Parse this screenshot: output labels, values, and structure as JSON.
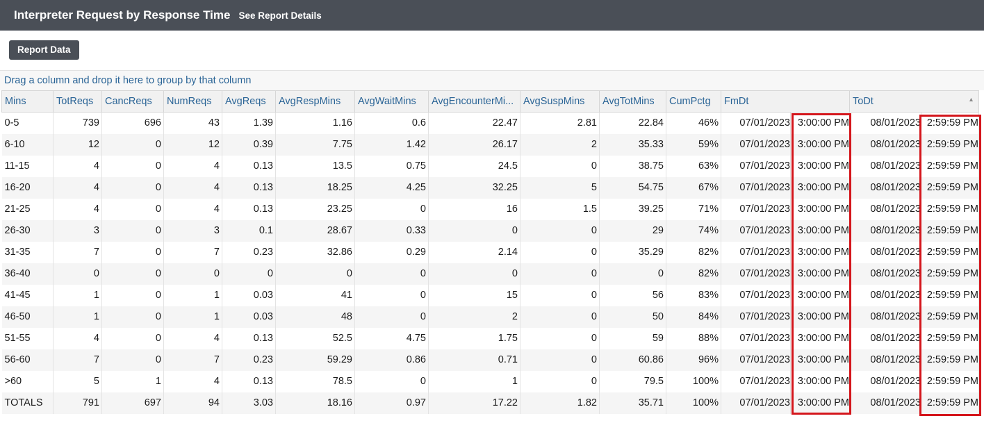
{
  "header": {
    "title": "Interpreter Request by Response Time",
    "details_link": "See Report Details"
  },
  "toolbar": {
    "report_data_label": "Report Data"
  },
  "grid": {
    "group_hint": "Drag a column and drop it here to group by that column",
    "columns": [
      "Mins",
      "TotReqs",
      "CancReqs",
      "NumReqs",
      "AvgReqs",
      "AvgRespMins",
      "AvgWaitMins",
      "AvgEncounterMi...",
      "AvgSuspMins",
      "AvgTotMins",
      "CumPctg",
      "FmDt",
      "ToDt"
    ],
    "rows": [
      [
        "0-5",
        "739",
        "696",
        "43",
        "1.39",
        "1.16",
        "0.6",
        "22.47",
        "2.81",
        "22.84",
        "46%",
        "07/01/2023",
        "3:00:00 PM",
        "08/01/2023",
        "2:59:59 PM"
      ],
      [
        "6-10",
        "12",
        "0",
        "12",
        "0.39",
        "7.75",
        "1.42",
        "26.17",
        "2",
        "35.33",
        "59%",
        "07/01/2023",
        "3:00:00 PM",
        "08/01/2023",
        "2:59:59 PM"
      ],
      [
        "11-15",
        "4",
        "0",
        "4",
        "0.13",
        "13.5",
        "0.75",
        "24.5",
        "0",
        "38.75",
        "63%",
        "07/01/2023",
        "3:00:00 PM",
        "08/01/2023",
        "2:59:59 PM"
      ],
      [
        "16-20",
        "4",
        "0",
        "4",
        "0.13",
        "18.25",
        "4.25",
        "32.25",
        "5",
        "54.75",
        "67%",
        "07/01/2023",
        "3:00:00 PM",
        "08/01/2023",
        "2:59:59 PM"
      ],
      [
        "21-25",
        "4",
        "0",
        "4",
        "0.13",
        "23.25",
        "0",
        "16",
        "1.5",
        "39.25",
        "71%",
        "07/01/2023",
        "3:00:00 PM",
        "08/01/2023",
        "2:59:59 PM"
      ],
      [
        "26-30",
        "3",
        "0",
        "3",
        "0.1",
        "28.67",
        "0.33",
        "0",
        "0",
        "29",
        "74%",
        "07/01/2023",
        "3:00:00 PM",
        "08/01/2023",
        "2:59:59 PM"
      ],
      [
        "31-35",
        "7",
        "0",
        "7",
        "0.23",
        "32.86",
        "0.29",
        "2.14",
        "0",
        "35.29",
        "82%",
        "07/01/2023",
        "3:00:00 PM",
        "08/01/2023",
        "2:59:59 PM"
      ],
      [
        "36-40",
        "0",
        "0",
        "0",
        "0",
        "0",
        "0",
        "0",
        "0",
        "0",
        "82%",
        "07/01/2023",
        "3:00:00 PM",
        "08/01/2023",
        "2:59:59 PM"
      ],
      [
        "41-45",
        "1",
        "0",
        "1",
        "0.03",
        "41",
        "0",
        "15",
        "0",
        "56",
        "83%",
        "07/01/2023",
        "3:00:00 PM",
        "08/01/2023",
        "2:59:59 PM"
      ],
      [
        "46-50",
        "1",
        "0",
        "1",
        "0.03",
        "48",
        "0",
        "2",
        "0",
        "50",
        "84%",
        "07/01/2023",
        "3:00:00 PM",
        "08/01/2023",
        "2:59:59 PM"
      ],
      [
        "51-55",
        "4",
        "0",
        "4",
        "0.13",
        "52.5",
        "4.75",
        "1.75",
        "0",
        "59",
        "88%",
        "07/01/2023",
        "3:00:00 PM",
        "08/01/2023",
        "2:59:59 PM"
      ],
      [
        "56-60",
        "7",
        "0",
        "7",
        "0.23",
        "59.29",
        "0.86",
        "0.71",
        "0",
        "60.86",
        "96%",
        "07/01/2023",
        "3:00:00 PM",
        "08/01/2023",
        "2:59:59 PM"
      ],
      [
        ">60",
        "5",
        "1",
        "4",
        "0.13",
        "78.5",
        "0",
        "1",
        "0",
        "79.5",
        "100%",
        "07/01/2023",
        "3:00:00 PM",
        "08/01/2023",
        "2:59:59 PM"
      ],
      [
        "TOTALS",
        "791",
        "697",
        "94",
        "3.03",
        "18.16",
        "0.97",
        "17.22",
        "1.82",
        "35.71",
        "100%",
        "07/01/2023",
        "3:00:00 PM",
        "08/01/2023",
        "2:59:59 PM"
      ]
    ]
  },
  "colors": {
    "header_bg": "#4a4f57",
    "link": "#2a6496",
    "highlight": "#d4161c"
  },
  "icons": {
    "sort": "sort-asc-icon"
  }
}
